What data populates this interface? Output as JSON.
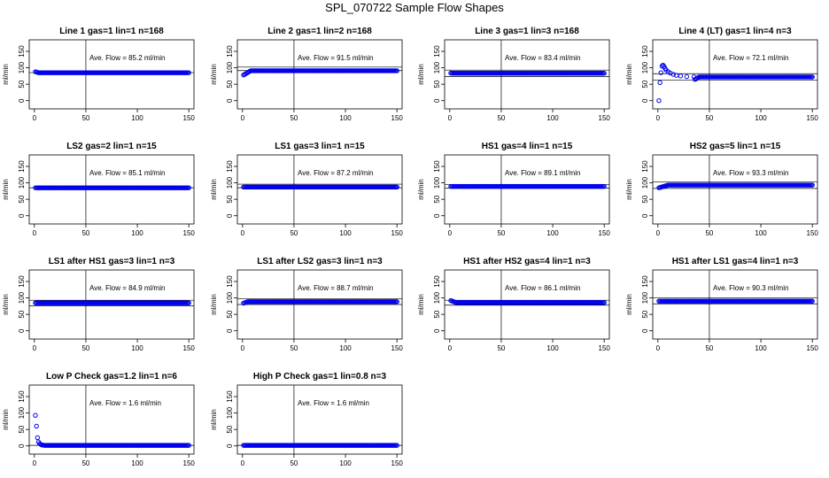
{
  "title": "SPL_070722  Sample Flow Shapes",
  "ylabel": "ml/min",
  "chart_data": [
    {
      "type": "scatter",
      "title": "Line 1 gas=1 lin=1 n=168",
      "annotation": "Ave. Flow = 85.2  ml/min",
      "xticks": [
        0,
        50,
        100,
        150
      ],
      "yticks": [
        0,
        50,
        100,
        150
      ],
      "xlim": [
        -5,
        155
      ],
      "ylim": [
        -25,
        185
      ],
      "hlines": [
        85.2
      ],
      "vline": 50,
      "y_start": 88,
      "y_settle": 85,
      "settle_x": 4,
      "x_start": 1,
      "x_end": 150
    },
    {
      "type": "scatter",
      "title": "Line 2 gas=1 lin=2 n=168",
      "annotation": "Ave. Flow = 91.5  ml/min",
      "xticks": [
        0,
        50,
        100,
        150
      ],
      "yticks": [
        0,
        50,
        100,
        150
      ],
      "xlim": [
        -5,
        155
      ],
      "ylim": [
        -25,
        185
      ],
      "hlines": [
        102,
        91.5
      ],
      "vline": 50,
      "y_start": 78,
      "y_settle": 91,
      "settle_x": 8,
      "x_start": 1,
      "x_end": 150
    },
    {
      "type": "scatter",
      "title": "Line 3 gas=1 lin=3 n=168",
      "annotation": "Ave. Flow = 83.4  ml/min",
      "xticks": [
        0,
        50,
        100,
        150
      ],
      "yticks": [
        0,
        50,
        100,
        150
      ],
      "xlim": [
        -5,
        155
      ],
      "ylim": [
        -25,
        185
      ],
      "hlines": [
        93,
        73
      ],
      "vline": 50,
      "y_start": 84,
      "y_settle": 83.4,
      "settle_x": 2,
      "x_start": 1,
      "x_end": 150
    },
    {
      "type": "scatter",
      "title": "Line 4 (LT) gas=1 lin=4 n=3",
      "annotation": "Ave. Flow = 72.1  ml/min",
      "xticks": [
        0,
        50,
        100,
        150
      ],
      "yticks": [
        0,
        50,
        100,
        150
      ],
      "xlim": [
        -5,
        155
      ],
      "ylim": [
        -25,
        185
      ],
      "hlines": [
        82,
        63
      ],
      "vline": 50,
      "y_start": 0,
      "y_settle": 72,
      "settle_x": 40,
      "x_start": 1,
      "x_end": 150,
      "transient": [
        [
          1,
          0
        ],
        [
          2,
          55
        ],
        [
          3,
          85
        ],
        [
          4,
          105
        ],
        [
          5,
          108
        ],
        [
          6,
          104
        ],
        [
          7,
          98
        ],
        [
          8,
          93
        ],
        [
          10,
          88
        ],
        [
          12,
          84
        ],
        [
          15,
          80
        ],
        [
          18,
          77
        ],
        [
          22,
          75
        ],
        [
          28,
          73
        ],
        [
          35,
          72.5
        ]
      ]
    },
    {
      "type": "scatter",
      "title": "LS2 gas=2 lin=1 n=15",
      "annotation": "Ave. Flow = 85.1  ml/min",
      "xticks": [
        0,
        50,
        100,
        150
      ],
      "yticks": [
        0,
        50,
        100,
        150
      ],
      "xlim": [
        -5,
        155
      ],
      "ylim": [
        -25,
        185
      ],
      "hlines": [
        85.1
      ],
      "vline": 50,
      "y_start": 85,
      "y_settle": 85,
      "settle_x": 1,
      "x_start": 1,
      "x_end": 150
    },
    {
      "type": "scatter",
      "title": "LS1 gas=3 lin=1 n=15",
      "annotation": "Ave. Flow = 87.2  ml/min",
      "xticks": [
        0,
        50,
        100,
        150
      ],
      "yticks": [
        0,
        50,
        100,
        150
      ],
      "xlim": [
        -5,
        155
      ],
      "ylim": [
        -25,
        185
      ],
      "hlines": [
        96,
        85
      ],
      "vline": 50,
      "y_start": 87,
      "y_settle": 87.2,
      "settle_x": 1,
      "x_start": 1,
      "x_end": 150
    },
    {
      "type": "scatter",
      "title": "HS1 gas=4 lin=1 n=15",
      "annotation": "Ave. Flow = 89.1  ml/min",
      "xticks": [
        0,
        50,
        100,
        150
      ],
      "yticks": [
        0,
        50,
        100,
        150
      ],
      "xlim": [
        -5,
        155
      ],
      "ylim": [
        -25,
        185
      ],
      "hlines": [
        95,
        84
      ],
      "vline": 50,
      "y_start": 89,
      "y_settle": 89.1,
      "settle_x": 1,
      "x_start": 1,
      "x_end": 150
    },
    {
      "type": "scatter",
      "title": "HS2 gas=5 lin=1 n=15",
      "annotation": "Ave. Flow = 93.3  ml/min",
      "xticks": [
        0,
        50,
        100,
        150
      ],
      "yticks": [
        0,
        50,
        100,
        150
      ],
      "xlim": [
        -5,
        155
      ],
      "ylim": [
        -25,
        185
      ],
      "hlines": [
        103,
        83
      ],
      "vline": 50,
      "y_start": 85,
      "y_settle": 93.3,
      "settle_x": 10,
      "x_start": 1,
      "x_end": 150
    },
    {
      "type": "scatter",
      "title": "LS1 after HS1 gas=3 lin=1 n=3",
      "annotation": "Ave. Flow = 84.9  ml/min",
      "xticks": [
        0,
        50,
        100,
        150
      ],
      "yticks": [
        0,
        50,
        100,
        150
      ],
      "xlim": [
        -5,
        155
      ],
      "ylim": [
        -25,
        185
      ],
      "hlines": [
        93,
        76
      ],
      "vline": 50,
      "y_start": 85,
      "y_settle": 84.9,
      "settle_x": 1,
      "x_start": 1,
      "x_end": 150
    },
    {
      "type": "scatter",
      "title": "LS1 after LS2 gas=3 lin=1 n=3",
      "annotation": "Ave. Flow = 88.7  ml/min",
      "xticks": [
        0,
        50,
        100,
        150
      ],
      "yticks": [
        0,
        50,
        100,
        150
      ],
      "xlim": [
        -5,
        155
      ],
      "ylim": [
        -25,
        185
      ],
      "hlines": [
        98,
        80
      ],
      "vline": 50,
      "y_start": 84,
      "y_settle": 88.7,
      "settle_x": 5,
      "x_start": 1,
      "x_end": 150
    },
    {
      "type": "scatter",
      "title": "HS1 after HS2 gas=4 lin=1 n=3",
      "annotation": "Ave. Flow = 86.1  ml/min",
      "xticks": [
        0,
        50,
        100,
        150
      ],
      "yticks": [
        0,
        50,
        100,
        150
      ],
      "xlim": [
        -5,
        155
      ],
      "ylim": [
        -25,
        185
      ],
      "hlines": [
        93,
        78
      ],
      "vline": 50,
      "y_start": 92,
      "y_settle": 86,
      "settle_x": 6,
      "x_start": 1,
      "x_end": 150
    },
    {
      "type": "scatter",
      "title": "HS1 after LS1 gas=4 lin=1 n=3",
      "annotation": "Ave. Flow = 90.3  ml/min",
      "xticks": [
        0,
        50,
        100,
        150
      ],
      "yticks": [
        0,
        50,
        100,
        150
      ],
      "xlim": [
        -5,
        155
      ],
      "ylim": [
        -25,
        185
      ],
      "hlines": [
        100,
        82
      ],
      "vline": 50,
      "y_start": 90,
      "y_settle": 90.3,
      "settle_x": 1,
      "x_start": 1,
      "x_end": 150
    },
    {
      "type": "scatter",
      "title": "Low P Check gas=1.2 lin=1 n=6",
      "annotation": "Ave. Flow = 1.6  ml/min",
      "xticks": [
        0,
        50,
        100,
        150
      ],
      "yticks": [
        0,
        50,
        100,
        150
      ],
      "xlim": [
        -5,
        155
      ],
      "ylim": [
        -25,
        185
      ],
      "hlines": [
        1.6
      ],
      "vline": 50,
      "y_start": 1.6,
      "y_settle": 1.6,
      "settle_x": 10,
      "x_start": 1,
      "x_end": 150,
      "transient": [
        [
          1,
          93
        ],
        [
          2,
          60
        ],
        [
          3,
          25
        ],
        [
          4,
          12
        ],
        [
          5,
          7
        ],
        [
          6,
          5
        ],
        [
          7,
          3
        ],
        [
          8,
          2.5
        ],
        [
          9,
          2
        ]
      ]
    },
    {
      "type": "scatter",
      "title": "High P Check gas=1 lin=0.8 n=3",
      "annotation": "Ave. Flow = 1.6  ml/min",
      "xticks": [
        0,
        50,
        100,
        150
      ],
      "yticks": [
        0,
        50,
        100,
        150
      ],
      "xlim": [
        -5,
        155
      ],
      "ylim": [
        -25,
        185
      ],
      "hlines": [
        1.6
      ],
      "vline": 50,
      "y_start": 1.6,
      "y_settle": 1.6,
      "settle_x": 1,
      "x_start": 1,
      "x_end": 150
    }
  ]
}
